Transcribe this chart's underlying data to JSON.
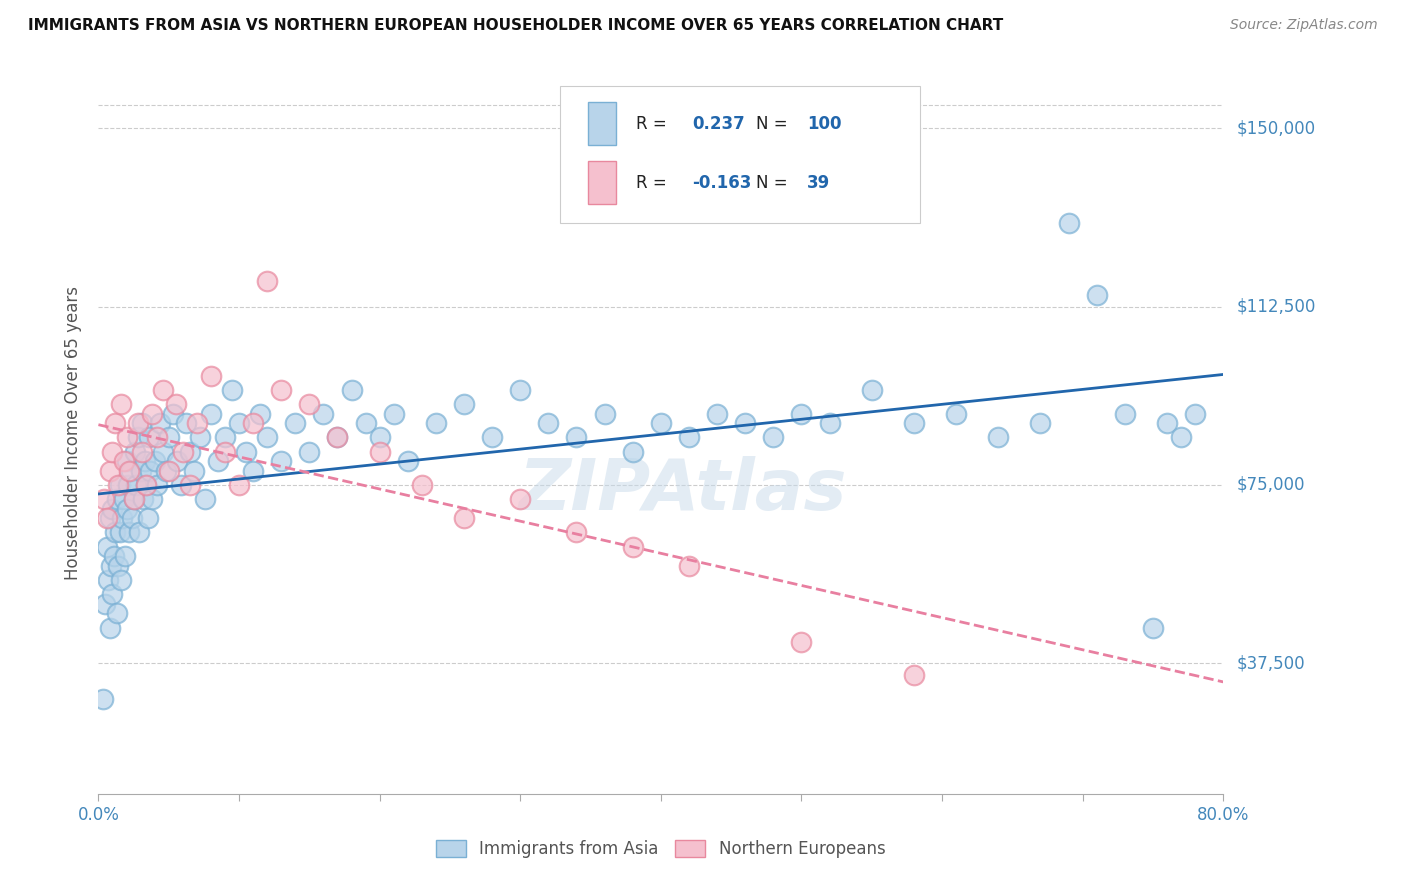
{
  "title": "IMMIGRANTS FROM ASIA VS NORTHERN EUROPEAN HOUSEHOLDER INCOME OVER 65 YEARS CORRELATION CHART",
  "source": "Source: ZipAtlas.com",
  "ylabel": "Householder Income Over 65 years",
  "xlabel_ticks": [
    "0.0%",
    "",
    "",
    "",
    "",
    "",
    "",
    "",
    "80.0%"
  ],
  "ytick_labels": [
    "$37,500",
    "$75,000",
    "$112,500",
    "$150,000"
  ],
  "ytick_values": [
    37500,
    75000,
    112500,
    150000
  ],
  "xlim": [
    0.0,
    0.8
  ],
  "ylim": [
    10000,
    162000
  ],
  "R_asia": 0.237,
  "N_asia": 100,
  "R_europe": -0.163,
  "N_europe": 39,
  "asia_color": "#b8d4ea",
  "asia_edge_color": "#7ab0d4",
  "europe_color": "#f5c0ce",
  "europe_edge_color": "#e8889e",
  "asia_line_color": "#2166ac",
  "europe_line_color": "#e87fa0",
  "watermark": "ZIPAtlas",
  "legend_labels": [
    "Immigrants from Asia",
    "Northern Europeans"
  ],
  "asia_scatter_x": [
    0.003,
    0.005,
    0.006,
    0.007,
    0.008,
    0.008,
    0.009,
    0.01,
    0.01,
    0.011,
    0.012,
    0.013,
    0.013,
    0.014,
    0.015,
    0.015,
    0.016,
    0.017,
    0.018,
    0.019,
    0.02,
    0.02,
    0.021,
    0.022,
    0.023,
    0.024,
    0.025,
    0.026,
    0.027,
    0.028,
    0.029,
    0.03,
    0.031,
    0.032,
    0.033,
    0.034,
    0.035,
    0.036,
    0.037,
    0.038,
    0.04,
    0.042,
    0.044,
    0.046,
    0.048,
    0.05,
    0.053,
    0.056,
    0.059,
    0.062,
    0.065,
    0.068,
    0.072,
    0.076,
    0.08,
    0.085,
    0.09,
    0.095,
    0.1,
    0.105,
    0.11,
    0.115,
    0.12,
    0.13,
    0.14,
    0.15,
    0.16,
    0.17,
    0.18,
    0.19,
    0.2,
    0.21,
    0.22,
    0.24,
    0.26,
    0.28,
    0.3,
    0.32,
    0.34,
    0.36,
    0.38,
    0.4,
    0.42,
    0.44,
    0.46,
    0.48,
    0.5,
    0.52,
    0.55,
    0.58,
    0.61,
    0.64,
    0.67,
    0.69,
    0.71,
    0.73,
    0.75,
    0.76,
    0.77,
    0.78
  ],
  "asia_scatter_y": [
    30000,
    50000,
    62000,
    55000,
    45000,
    68000,
    58000,
    52000,
    70000,
    60000,
    65000,
    48000,
    72000,
    58000,
    65000,
    75000,
    55000,
    68000,
    72000,
    60000,
    70000,
    80000,
    75000,
    65000,
    78000,
    68000,
    72000,
    82000,
    75000,
    85000,
    65000,
    78000,
    88000,
    72000,
    80000,
    75000,
    68000,
    85000,
    78000,
    72000,
    80000,
    75000,
    88000,
    82000,
    78000,
    85000,
    90000,
    80000,
    75000,
    88000,
    82000,
    78000,
    85000,
    72000,
    90000,
    80000,
    85000,
    95000,
    88000,
    82000,
    78000,
    90000,
    85000,
    80000,
    88000,
    82000,
    90000,
    85000,
    95000,
    88000,
    85000,
    90000,
    80000,
    88000,
    92000,
    85000,
    95000,
    88000,
    85000,
    90000,
    82000,
    88000,
    85000,
    90000,
    88000,
    85000,
    90000,
    88000,
    95000,
    88000,
    90000,
    85000,
    88000,
    130000,
    115000,
    90000,
    45000,
    88000,
    85000,
    90000
  ],
  "europe_scatter_x": [
    0.004,
    0.006,
    0.008,
    0.01,
    0.012,
    0.014,
    0.016,
    0.018,
    0.02,
    0.022,
    0.025,
    0.028,
    0.031,
    0.034,
    0.038,
    0.042,
    0.046,
    0.05,
    0.055,
    0.06,
    0.065,
    0.07,
    0.08,
    0.09,
    0.1,
    0.11,
    0.12,
    0.13,
    0.15,
    0.17,
    0.2,
    0.23,
    0.26,
    0.3,
    0.34,
    0.38,
    0.42,
    0.5,
    0.58
  ],
  "europe_scatter_y": [
    72000,
    68000,
    78000,
    82000,
    88000,
    75000,
    92000,
    80000,
    85000,
    78000,
    72000,
    88000,
    82000,
    75000,
    90000,
    85000,
    95000,
    78000,
    92000,
    82000,
    75000,
    88000,
    98000,
    82000,
    75000,
    88000,
    118000,
    95000,
    92000,
    85000,
    82000,
    75000,
    68000,
    72000,
    65000,
    62000,
    58000,
    42000,
    35000
  ]
}
